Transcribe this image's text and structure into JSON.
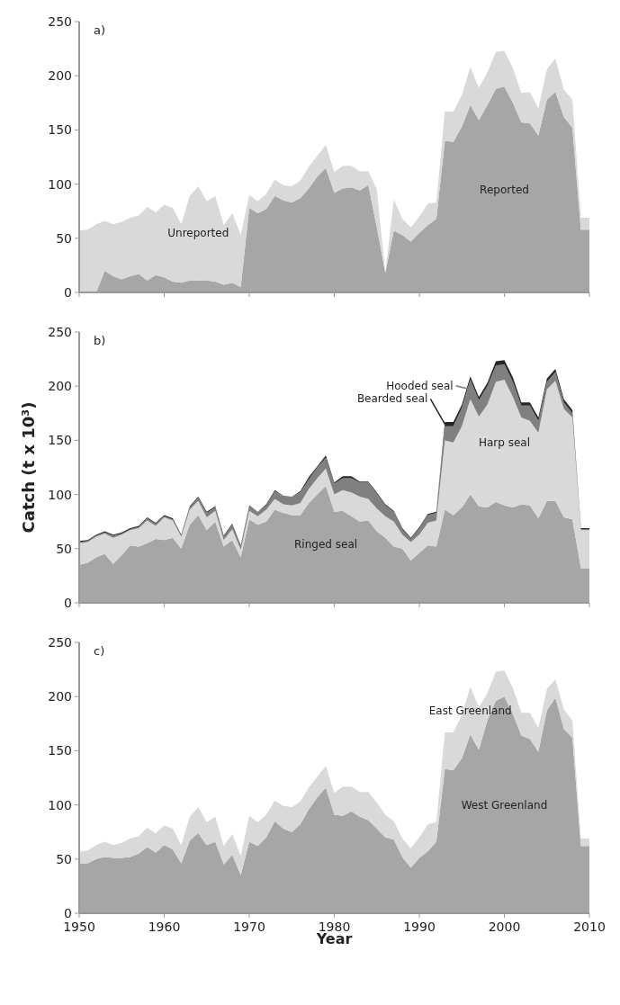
{
  "chart_data": [
    {
      "type": "area",
      "title": "a)",
      "stacked": true,
      "tick_labels": "y",
      "xlim": [
        1950,
        2010
      ],
      "xticks": [
        1950,
        1960,
        1970,
        1980,
        1990,
        2000,
        2010
      ],
      "ylim": [
        0,
        250
      ],
      "yticks": [
        0,
        50,
        100,
        150,
        200,
        250
      ],
      "x": [
        1950,
        1951,
        1952,
        1953,
        1954,
        1955,
        1956,
        1957,
        1958,
        1959,
        1960,
        1961,
        1962,
        1963,
        1964,
        1965,
        1966,
        1967,
        1968,
        1969,
        1970,
        1971,
        1972,
        1973,
        1974,
        1975,
        1976,
        1977,
        1978,
        1979,
        1980,
        1981,
        1982,
        1983,
        1984,
        1985,
        1986,
        1987,
        1988,
        1989,
        1990,
        1991,
        1992,
        1993,
        1994,
        1995,
        1996,
        1997,
        1998,
        1999,
        2000,
        2001,
        2002,
        2003,
        2004,
        2005,
        2006,
        2007,
        2008,
        2009,
        2010
      ],
      "series": [
        {
          "name": "Reported",
          "color": "#a6a6a6",
          "values": [
            0,
            0,
            0,
            20,
            15,
            12,
            15,
            17,
            11,
            16,
            14,
            10,
            9,
            11,
            11,
            11,
            10,
            7,
            9,
            5,
            78,
            73,
            77,
            89,
            85,
            83,
            87,
            96,
            107,
            115,
            92,
            96,
            97,
            94,
            99,
            60,
            18,
            57,
            53,
            47,
            55,
            62,
            68,
            140,
            139,
            153,
            173,
            159,
            173,
            188,
            190,
            175,
            157,
            156,
            145,
            178,
            185,
            162,
            152,
            58,
            58
          ]
        },
        {
          "name": "Unreported",
          "color": "#d9d9d9",
          "values": [
            57,
            58,
            63,
            46,
            48,
            53,
            54,
            54,
            68,
            58,
            67,
            68,
            54,
            78,
            87,
            73,
            79,
            55,
            64,
            48,
            12,
            11,
            14,
            15,
            14,
            15,
            16,
            20,
            19,
            21,
            19,
            21,
            20,
            18,
            13,
            35,
            0,
            29,
            15,
            13,
            15,
            20,
            15,
            27,
            28,
            29,
            35,
            30,
            30,
            34,
            33,
            32,
            27,
            29,
            25,
            28,
            31,
            25,
            26,
            11,
            11
          ]
        }
      ]
    },
    {
      "type": "area",
      "title": "b)",
      "ylabel": "Catch (t x 10³)",
      "stacked": true,
      "tick_labels": "y",
      "xlim": [
        1950,
        2010
      ],
      "xticks": [
        1950,
        1960,
        1970,
        1980,
        1990,
        2000,
        2010
      ],
      "ylim": [
        0,
        250
      ],
      "yticks": [
        0,
        50,
        100,
        150,
        200,
        250
      ],
      "x": [
        1950,
        1951,
        1952,
        1953,
        1954,
        1955,
        1956,
        1957,
        1958,
        1959,
        1960,
        1961,
        1962,
        1963,
        1964,
        1965,
        1966,
        1967,
        1968,
        1969,
        1970,
        1971,
        1972,
        1973,
        1974,
        1975,
        1976,
        1977,
        1978,
        1979,
        1980,
        1981,
        1982,
        1983,
        1984,
        1985,
        1986,
        1987,
        1988,
        1989,
        1990,
        1991,
        1992,
        1993,
        1994,
        1995,
        1996,
        1997,
        1998,
        1999,
        2000,
        2001,
        2002,
        2003,
        2004,
        2005,
        2006,
        2007,
        2008,
        2009,
        2010
      ],
      "series": [
        {
          "name": "Ringed seal",
          "color": "#a6a6a6",
          "values": [
            35,
            37,
            42,
            45,
            36,
            44,
            53,
            52,
            55,
            59,
            58,
            60,
            50,
            72,
            81,
            67,
            75,
            52,
            58,
            42,
            77,
            72,
            75,
            86,
            83,
            81,
            81,
            92,
            100,
            108,
            84,
            85,
            80,
            75,
            76,
            66,
            60,
            52,
            50,
            39,
            46,
            53,
            52,
            86,
            81,
            88,
            100,
            89,
            88,
            93,
            90,
            88,
            91,
            90,
            78,
            94,
            94,
            79,
            77,
            32,
            32
          ]
        },
        {
          "name": "Harp seal",
          "color": "#d9d9d9",
          "values": [
            20,
            19,
            19,
            19,
            24,
            19,
            14,
            17,
            21,
            12,
            21,
            16,
            11,
            14,
            13,
            12,
            10,
            6,
            10,
            7,
            8,
            8,
            11,
            10,
            8,
            9,
            11,
            13,
            15,
            16,
            16,
            19,
            22,
            23,
            20,
            21,
            20,
            23,
            13,
            17,
            17,
            21,
            24,
            64,
            67,
            75,
            88,
            83,
            95,
            111,
            116,
            102,
            80,
            78,
            79,
            103,
            111,
            100,
            94,
            35,
            35
          ]
        },
        {
          "name": "Hooded seal",
          "color": "#808080",
          "values": [
            1,
            1,
            1,
            1,
            2,
            1,
            1,
            1,
            2,
            2,
            1,
            1,
            1,
            2,
            3,
            4,
            3,
            3,
            4,
            3,
            4,
            4,
            4,
            7,
            8,
            8,
            10,
            9,
            10,
            10,
            10,
            11,
            13,
            13,
            15,
            14,
            10,
            9,
            5,
            3,
            6,
            7,
            7,
            13,
            15,
            17,
            18,
            15,
            17,
            15,
            14,
            14,
            11,
            14,
            11,
            7,
            8,
            6,
            4,
            1,
            1
          ]
        },
        {
          "name": "Bearded seal",
          "color": "#262626",
          "values": [
            1,
            1,
            1,
            1,
            1,
            1,
            1,
            1,
            1,
            1,
            1,
            1,
            1,
            1,
            1,
            1,
            1,
            1,
            1,
            1,
            1,
            0,
            1,
            1,
            0,
            0,
            1,
            2,
            1,
            2,
            1,
            2,
            2,
            1,
            1,
            1,
            1,
            1,
            1,
            1,
            1,
            1,
            1,
            4,
            4,
            3,
            3,
            3,
            3,
            4,
            4,
            4,
            3,
            3,
            3,
            3,
            3,
            3,
            3,
            1,
            1
          ]
        }
      ]
    },
    {
      "type": "area",
      "title": "c)",
      "xlabel": "Year",
      "stacked": true,
      "xlim": [
        1950,
        2010
      ],
      "xticks": [
        1950,
        1960,
        1970,
        1980,
        1990,
        2000,
        2010
      ],
      "ylim": [
        0,
        250
      ],
      "yticks": [
        0,
        50,
        100,
        150,
        200,
        250
      ],
      "x": [
        1950,
        1951,
        1952,
        1953,
        1954,
        1955,
        1956,
        1957,
        1958,
        1959,
        1960,
        1961,
        1962,
        1963,
        1964,
        1965,
        1966,
        1967,
        1968,
        1969,
        1970,
        1971,
        1972,
        1973,
        1974,
        1975,
        1976,
        1977,
        1978,
        1979,
        1980,
        1981,
        1982,
        1983,
        1984,
        1985,
        1986,
        1987,
        1988,
        1989,
        1990,
        1991,
        1992,
        1993,
        1994,
        1995,
        1996,
        1997,
        1998,
        1999,
        2000,
        2001,
        2002,
        2003,
        2004,
        2005,
        2006,
        2007,
        2008,
        2009,
        2010
      ],
      "series": [
        {
          "name": "West Greenland",
          "color": "#a6a6a6",
          "values": [
            46,
            46,
            50,
            52,
            51,
            51,
            52,
            55,
            61,
            56,
            63,
            59,
            46,
            67,
            74,
            63,
            66,
            45,
            54,
            35,
            66,
            62,
            70,
            85,
            78,
            75,
            82,
            96,
            107,
            116,
            91,
            90,
            94,
            89,
            86,
            78,
            70,
            68,
            52,
            42,
            51,
            57,
            66,
            133,
            132,
            143,
            165,
            151,
            178,
            196,
            200,
            184,
            164,
            161,
            149,
            187,
            199,
            170,
            162,
            62,
            62
          ]
        },
        {
          "name": "East Greenland",
          "color": "#d9d9d9",
          "values": [
            11,
            12,
            13,
            14,
            12,
            14,
            17,
            16,
            18,
            18,
            18,
            19,
            17,
            22,
            24,
            21,
            23,
            17,
            19,
            18,
            24,
            22,
            21,
            19,
            21,
            23,
            21,
            20,
            19,
            20,
            20,
            27,
            23,
            23,
            26,
            24,
            21,
            17,
            17,
            18,
            19,
            25,
            18,
            34,
            35,
            40,
            44,
            39,
            25,
            27,
            24,
            24,
            21,
            24,
            22,
            20,
            17,
            18,
            16,
            7,
            7
          ]
        }
      ]
    }
  ]
}
